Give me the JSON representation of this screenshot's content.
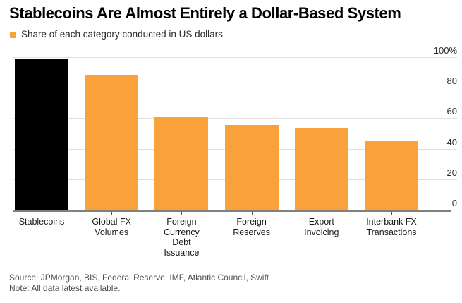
{
  "header": {
    "title": "Stablecoins Are Almost Entirely a Dollar-Based System",
    "legend_label": "Share of each category conducted in US dollars"
  },
  "footer": {
    "source_line": "Source: JPMorgan, BIS, Federal Reserve, IMF, Atlantic Council, Swift",
    "note_line": "Note: All data latest available."
  },
  "colors": {
    "bar_orange": "#F9A13B",
    "bar_black": "#000000",
    "gridline": "#E0E0E0",
    "baseline": "#808080",
    "tick": "#4d4d4d",
    "ytick_label": "#2b2b2b",
    "category_label": "#1a1a1a",
    "footer_text": "#4d4d4d",
    "background": "#ffffff"
  },
  "chart_data": {
    "type": "bar",
    "title": "Stablecoins Are Almost Entirely a Dollar-Based System",
    "legend": {
      "label": "Share of each category conducted in US dollars",
      "position": "top-left"
    },
    "categories": [
      "Stablecoins",
      "Global FX Volumes",
      "Foreign Currency Debt Issuance",
      "Foreign Reserves",
      "Export Invoicing",
      "Interbank FX Transactions"
    ],
    "category_label_lines": [
      [
        "Stablecoins"
      ],
      [
        "Global FX",
        "Volumes"
      ],
      [
        "Foreign",
        "Currency",
        "Debt",
        "Issuance"
      ],
      [
        "Foreign",
        "Reserves"
      ],
      [
        "Export",
        "Invoicing"
      ],
      [
        "Interbank FX",
        "Transactions"
      ]
    ],
    "values": [
      99,
      89,
      61,
      56,
      54,
      46
    ],
    "bar_colors": [
      "#000000",
      "#F9A13B",
      "#F9A13B",
      "#F9A13B",
      "#F9A13B",
      "#F9A13B"
    ],
    "unit": "%",
    "xlabel": "",
    "ylabel": "",
    "ylim": [
      0,
      100
    ],
    "yticks": [
      0,
      20,
      40,
      60,
      80,
      100
    ],
    "ytick_labels": [
      "0",
      "20",
      "40",
      "60",
      "80",
      "100%"
    ],
    "y_axis_side": "right",
    "grid": true,
    "source": "Source: JPMorgan, BIS, Federal Reserve, IMF, Atlantic Council, Swift",
    "note": "Note: All data latest available."
  }
}
